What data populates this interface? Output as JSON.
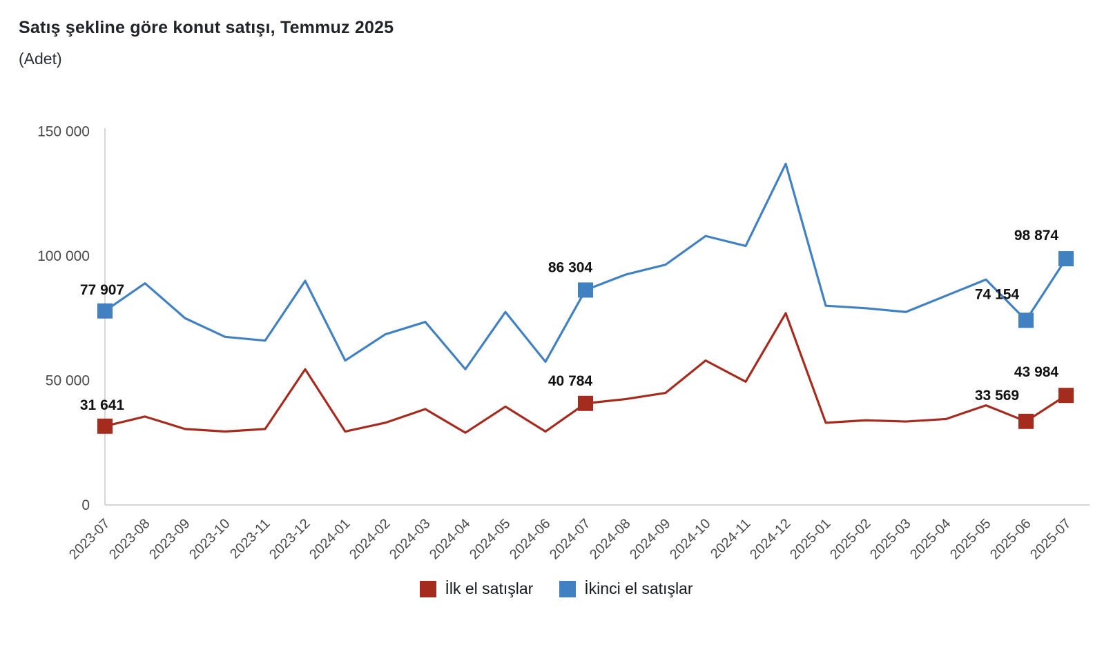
{
  "header": {
    "title": "Satış şekline göre konut satışı, Temmuz 2025",
    "subtitle": "(Adet)"
  },
  "chart_data": {
    "type": "line",
    "title": "Satış şekline göre konut satışı, Temmuz 2025",
    "unit_label": "(Adet)",
    "categories": [
      "2023-07",
      "2023-08",
      "2023-09",
      "2023-10",
      "2023-11",
      "2023-12",
      "2024-01",
      "2024-02",
      "2024-03",
      "2024-04",
      "2024-05",
      "2024-06",
      "2024-07",
      "2024-08",
      "2024-09",
      "2024-10",
      "2024-11",
      "2024-12",
      "2025-01",
      "2025-02",
      "2025-03",
      "2025-04",
      "2025-05",
      "2025-06",
      "2025-07"
    ],
    "series": [
      {
        "name": "İlk el satışlar",
        "color": "#A62B1F",
        "values": [
          31641,
          35500,
          30500,
          29500,
          30500,
          54500,
          29500,
          33000,
          38500,
          29000,
          39500,
          29500,
          40784,
          42500,
          45000,
          58000,
          49500,
          77000,
          33000,
          34000,
          33500,
          34500,
          40000,
          33569,
          43984
        ]
      },
      {
        "name": "İkinci el satışlar",
        "color": "#4181C2",
        "values": [
          77907,
          89000,
          75000,
          67500,
          66000,
          90000,
          58000,
          68500,
          73500,
          54500,
          77500,
          57500,
          86304,
          92500,
          96500,
          108000,
          104000,
          137000,
          80000,
          79000,
          77500,
          84000,
          90500,
          74154,
          98874
        ]
      }
    ],
    "labeled_points": [
      {
        "series": 0,
        "index": 0,
        "label": "31 641"
      },
      {
        "series": 0,
        "index": 12,
        "label": "40 784"
      },
      {
        "series": 0,
        "index": 23,
        "label": "33 569"
      },
      {
        "series": 0,
        "index": 24,
        "label": "43 984"
      },
      {
        "series": 1,
        "index": 0,
        "label": "77 907"
      },
      {
        "series": 1,
        "index": 12,
        "label": "86 304"
      },
      {
        "series": 1,
        "index": 23,
        "label": "74 154"
      },
      {
        "series": 1,
        "index": 24,
        "label": "98 874"
      }
    ],
    "y_axis": {
      "tick_values": [
        0,
        50000,
        100000,
        150000
      ],
      "tick_labels": [
        "0",
        "50 000",
        "100 000",
        "150 000"
      ]
    },
    "ylim": [
      0,
      150000
    ],
    "grid": false,
    "legend_position": "bottom",
    "colors": {
      "axis_line": "#d6d6d6",
      "tick_text": "#4a4a4a",
      "data_label_text": "#111111"
    }
  }
}
